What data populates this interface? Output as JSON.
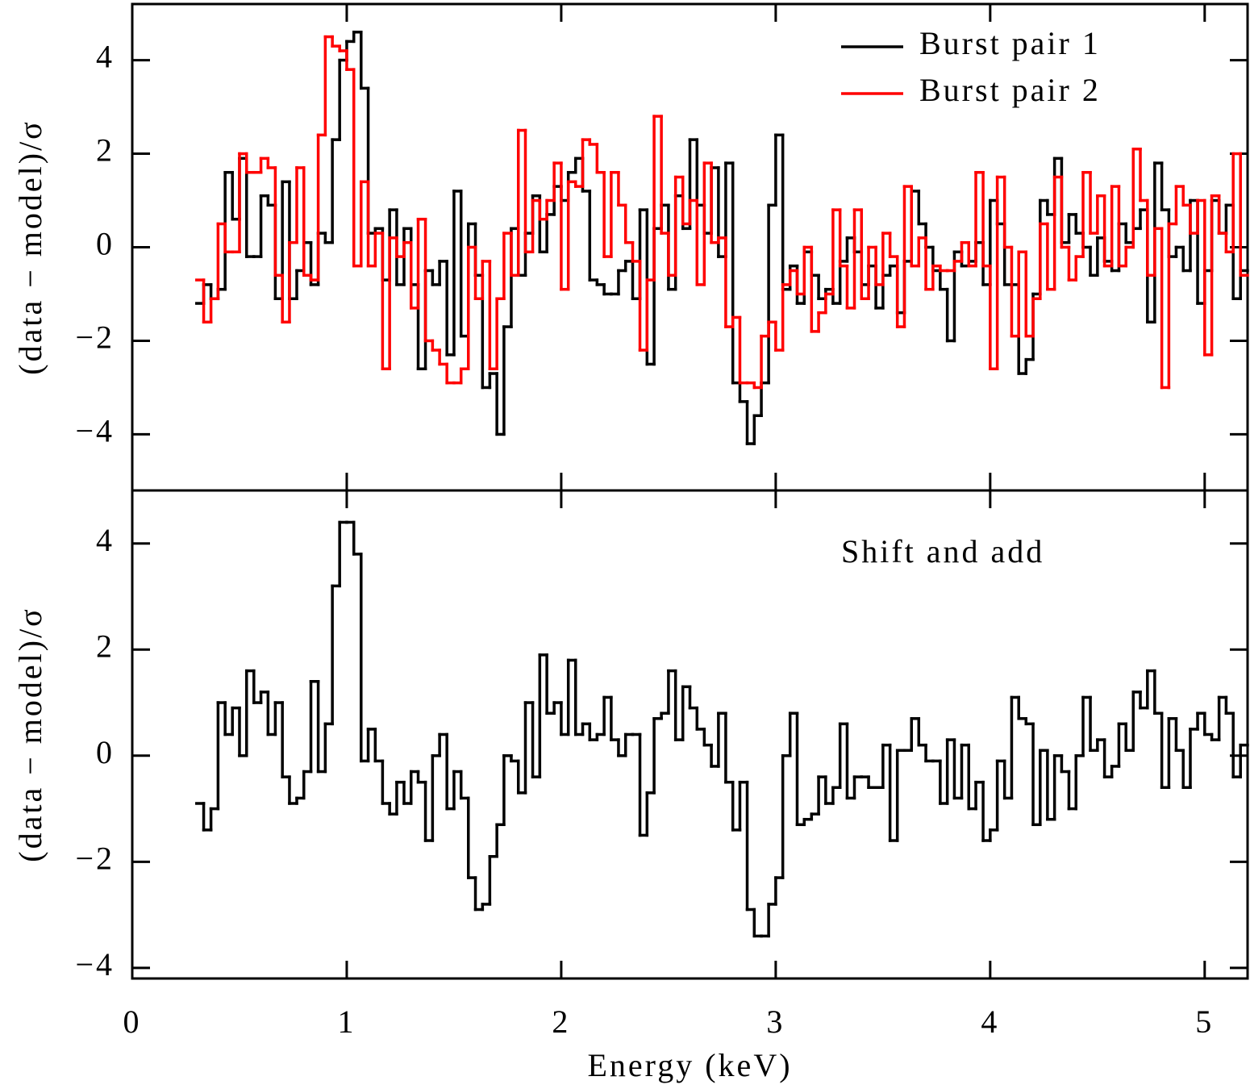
{
  "chart_data": [
    {
      "type": "histogram",
      "ylabel": "(data − model)/σ",
      "legend": "upper right",
      "show_xtick_labels": false,
      "xlim": [
        0,
        5.2
      ],
      "xticks": [
        0,
        1,
        2,
        3,
        4,
        5
      ],
      "ylim": [
        -5.2,
        5.2
      ],
      "yticks": [
        {
          "value": -4,
          "label": "−4"
        },
        {
          "value": -2,
          "label": "−2"
        },
        0,
        2,
        4
      ],
      "bins": [
        0.3,
        0.333,
        0.367,
        0.4,
        0.433,
        0.467,
        0.5,
        0.533,
        0.567,
        0.6,
        0.633,
        0.667,
        0.7,
        0.733,
        0.767,
        0.8,
        0.833,
        0.867,
        0.9,
        0.933,
        0.967,
        1,
        1.033,
        1.067,
        1.1,
        1.133,
        1.167,
        1.2,
        1.233,
        1.267,
        1.3,
        1.333,
        1.367,
        1.4,
        1.433,
        1.467,
        1.5,
        1.533,
        1.567,
        1.6,
        1.633,
        1.667,
        1.7,
        1.733,
        1.767,
        1.8,
        1.833,
        1.867,
        1.9,
        1.933,
        1.967,
        2,
        2.033,
        2.067,
        2.1,
        2.133,
        2.167,
        2.2,
        2.233,
        2.267,
        2.3,
        2.333,
        2.367,
        2.4,
        2.433,
        2.467,
        2.5,
        2.533,
        2.567,
        2.6,
        2.633,
        2.667,
        2.7,
        2.733,
        2.767,
        2.8,
        2.833,
        2.867,
        2.9,
        2.933,
        2.967,
        3,
        3.033,
        3.067,
        3.1,
        3.133,
        3.167,
        3.2,
        3.233,
        3.267,
        3.3,
        3.333,
        3.367,
        3.4,
        3.433,
        3.467,
        3.5,
        3.533,
        3.567,
        3.6,
        3.633,
        3.667,
        3.7,
        3.733,
        3.767,
        3.8,
        3.833,
        3.867,
        3.9,
        3.933,
        3.967,
        4,
        4.033,
        4.067,
        4.1,
        4.133,
        4.167,
        4.2,
        4.233,
        4.267,
        4.3,
        4.333,
        4.367,
        4.4,
        4.433,
        4.467,
        4.5,
        4.533,
        4.567,
        4.6,
        4.633,
        4.667,
        4.7,
        4.733,
        4.767,
        4.8,
        4.833,
        4.867,
        4.9,
        4.933,
        4.967,
        5,
        5.033,
        5.067,
        5.1,
        5.133,
        5.167,
        5.2
      ],
      "series": [
        {
          "name": "Burst pair 1",
          "color": "#000000",
          "values": [
            -1.2,
            -0.8,
            -1.1,
            -0.9,
            1.6,
            0.6,
            1.9,
            -0.2,
            -0.2,
            1.1,
            0.9,
            -1.1,
            1.4,
            -1.1,
            -0.5,
            0.1,
            -0.8,
            0.3,
            0.1,
            2.3,
            4.0,
            4.4,
            4.6,
            3.4,
            0.3,
            0.4,
            -0.7,
            0.8,
            -0.8,
            0.4,
            -0.8,
            -2.6,
            -0.5,
            -0.8,
            -0.3,
            -2.3,
            1.2,
            -1.9,
            0.5,
            -0.6,
            -3.0,
            -2.7,
            -4.0,
            -1.7,
            0.4,
            -0.6,
            0.3,
            1.1,
            -0.1,
            0.7,
            1.3,
            1.0,
            1.6,
            1.9,
            1.2,
            -0.7,
            -0.8,
            -1.0,
            -1.0,
            -0.5,
            -0.3,
            -1.1,
            0.8,
            -2.5,
            0.4,
            0.9,
            -0.9,
            1.1,
            0.4,
            2.3,
            0.9,
            0.3,
            1.7,
            -0.2,
            1.8,
            -2.9,
            -3.3,
            -4.2,
            -3.6,
            -2.9,
            0.9,
            2.4,
            -0.9,
            -0.4,
            -1.2,
            -0.1,
            -0.6,
            -1.1,
            -0.9,
            -1.2,
            -0.3,
            0.2,
            -0.1,
            -0.8,
            -0.4,
            -1.3,
            -0.6,
            -0.4,
            -1.4,
            -0.3,
            1.2,
            0.5,
            0.0,
            -0.5,
            -0.9,
            -2.0,
            -0.1,
            -0.4,
            -0.3,
            0.1,
            -0.8,
            1.0,
            0.5,
            -0.8,
            -0.8,
            -2.7,
            -2.4,
            -1.0,
            1.0,
            0.7,
            1.9,
            0.1,
            0.7,
            0.3,
            0.0,
            -0.6,
            0.2,
            -0.3,
            -0.5,
            0.5,
            0.1,
            0.4,
            0.8,
            -1.6,
            1.8,
            0.8,
            -0.2,
            0.0,
            -0.5,
            1.0,
            -1.2,
            -0.5,
            1.0,
            0.3,
            0.9,
            -1.1,
            -0.5
          ]
        },
        {
          "name": "Burst pair 2",
          "color": "#ff0000",
          "values": [
            -0.7,
            -1.6,
            -1.1,
            0.5,
            -0.1,
            -0.1,
            2.0,
            1.6,
            1.6,
            1.9,
            1.7,
            -0.6,
            -1.6,
            0.1,
            1.7,
            -0.6,
            -0.7,
            2.4,
            4.5,
            4.3,
            4.2,
            3.8,
            -0.4,
            1.4,
            -0.4,
            0.3,
            -2.6,
            0.2,
            -0.2,
            0.1,
            -1.3,
            0.6,
            -2.0,
            -2.2,
            -2.5,
            -2.9,
            -2.9,
            -2.6,
            0.0,
            -1.1,
            -0.3,
            -2.6,
            -1.1,
            0.3,
            -0.6,
            2.5,
            -0.1,
            1.0,
            0.6,
            1.0,
            1.8,
            -0.9,
            1.4,
            1.3,
            2.3,
            2.2,
            1.6,
            -0.2,
            1.6,
            0.9,
            0.1,
            -0.3,
            -2.2,
            -0.7,
            2.8,
            0.3,
            -0.6,
            1.5,
            0.5,
            1.0,
            -0.8,
            1.8,
            0.1,
            0.2,
            -1.7,
            -1.5,
            -2.9,
            -2.9,
            -3.0,
            -1.9,
            -1.6,
            -2.2,
            -0.8,
            -0.5,
            -1.0,
            0.0,
            -1.8,
            -1.4,
            -1.0,
            0.8,
            -0.4,
            -1.3,
            0.8,
            -1.1,
            0.0,
            -0.8,
            0.3,
            -0.2,
            -1.7,
            1.3,
            -0.4,
            0.2,
            -0.9,
            -0.4,
            -0.5,
            -0.5,
            -0.3,
            0.1,
            -0.4,
            1.6,
            -0.4,
            -2.6,
            1.5,
            0.0,
            -1.9,
            -0.1,
            -1.9,
            -1.1,
            0.5,
            -0.9,
            1.5,
            0.0,
            -0.7,
            -0.2,
            1.6,
            0.3,
            1.1,
            -0.4,
            1.3,
            -0.4,
            0.0,
            2.1,
            1.0,
            -0.6,
            0.4,
            -3.0,
            0.5,
            1.3,
            0.9,
            0.3,
            1.0,
            -2.3,
            1.1,
            0.3,
            -0.1,
            2.0,
            -0.6
          ]
        }
      ]
    },
    {
      "type": "histogram",
      "ylabel": "(data − model)/σ",
      "xlabel": "Energy (keV)",
      "annotation": "Shift and add",
      "show_xtick_labels": true,
      "xlim": [
        0,
        5.2
      ],
      "xticks": [
        0,
        1,
        2,
        3,
        4,
        5
      ],
      "ylim": [
        -4.2,
        5
      ],
      "yticks": [
        {
          "value": -4,
          "label": "−4"
        },
        {
          "value": -2,
          "label": "−2"
        },
        0,
        2,
        4
      ],
      "bins": [
        0.3,
        0.333,
        0.367,
        0.4,
        0.433,
        0.467,
        0.5,
        0.533,
        0.567,
        0.6,
        0.633,
        0.667,
        0.7,
        0.733,
        0.767,
        0.8,
        0.833,
        0.867,
        0.9,
        0.933,
        0.967,
        1,
        1.033,
        1.067,
        1.1,
        1.133,
        1.167,
        1.2,
        1.233,
        1.267,
        1.3,
        1.333,
        1.367,
        1.4,
        1.433,
        1.467,
        1.5,
        1.533,
        1.567,
        1.6,
        1.633,
        1.667,
        1.7,
        1.733,
        1.767,
        1.8,
        1.833,
        1.867,
        1.9,
        1.933,
        1.967,
        2,
        2.033,
        2.067,
        2.1,
        2.133,
        2.167,
        2.2,
        2.233,
        2.267,
        2.3,
        2.333,
        2.367,
        2.4,
        2.433,
        2.467,
        2.5,
        2.533,
        2.567,
        2.6,
        2.633,
        2.667,
        2.7,
        2.733,
        2.767,
        2.8,
        2.833,
        2.867,
        2.9,
        2.933,
        2.967,
        3,
        3.033,
        3.067,
        3.1,
        3.133,
        3.167,
        3.2,
        3.233,
        3.267,
        3.3,
        3.333,
        3.367,
        3.4,
        3.433,
        3.467,
        3.5,
        3.533,
        3.567,
        3.6,
        3.633,
        3.667,
        3.7,
        3.733,
        3.767,
        3.8,
        3.833,
        3.867,
        3.9,
        3.933,
        3.967,
        4,
        4.033,
        4.067,
        4.1,
        4.133,
        4.167,
        4.2,
        4.233,
        4.267,
        4.3,
        4.333,
        4.367,
        4.4,
        4.433,
        4.467,
        4.5,
        4.533,
        4.567,
        4.6,
        4.633,
        4.667,
        4.7,
        4.733,
        4.767,
        4.8,
        4.833,
        4.867,
        4.9,
        4.933,
        4.967,
        5,
        5.033,
        5.067,
        5.1,
        5.133,
        5.167,
        5.2
      ],
      "color": "#000000",
      "values": [
        -0.9,
        -1.4,
        -1.0,
        1.0,
        0.4,
        0.9,
        0.0,
        1.6,
        1.0,
        1.2,
        0.4,
        1.0,
        -0.4,
        -0.9,
        -0.8,
        -0.3,
        1.4,
        -0.3,
        0.6,
        3.2,
        4.4,
        4.4,
        3.8,
        -0.1,
        0.5,
        -0.1,
        -0.9,
        -1.1,
        -0.5,
        -0.9,
        -0.3,
        -0.5,
        -1.6,
        0.0,
        0.4,
        -1.0,
        -0.3,
        -0.8,
        -2.3,
        -2.9,
        -2.8,
        -1.9,
        -1.3,
        0.0,
        -0.1,
        -0.7,
        1.0,
        -0.4,
        1.9,
        0.8,
        1.0,
        0.4,
        1.8,
        0.4,
        0.6,
        0.3,
        0.4,
        1.1,
        0.3,
        0.0,
        0.4,
        0.4,
        -1.5,
        -0.7,
        0.7,
        0.8,
        1.6,
        0.3,
        1.3,
        0.9,
        0.5,
        0.2,
        -0.2,
        0.8,
        -0.5,
        -1.4,
        -0.5,
        -2.9,
        -3.4,
        -3.4,
        -2.8,
        -2.3,
        0.0,
        0.8,
        -1.3,
        -1.2,
        -1.1,
        -0.4,
        -0.9,
        -0.6,
        0.6,
        -0.8,
        -0.4,
        -0.4,
        -0.6,
        -0.6,
        0.2,
        -1.6,
        0.1,
        0.1,
        0.7,
        0.2,
        -0.1,
        -0.1,
        -0.9,
        0.3,
        -0.8,
        0.2,
        -1.0,
        -0.5,
        -1.6,
        -1.4,
        -0.1,
        -0.8,
        1.1,
        0.7,
        0.6,
        -1.3,
        0.1,
        -1.2,
        0.0,
        -0.3,
        -1.0,
        0.0,
        1.1,
        0.1,
        0.3,
        -0.4,
        -0.2,
        0.6,
        0.1,
        1.2,
        0.9,
        1.6,
        0.8,
        -0.6,
        0.7,
        0.1,
        -0.6,
        0.5,
        0.8,
        0.4,
        0.3,
        1.1,
        0.8,
        -0.4,
        0.2
      ]
    }
  ]
}
